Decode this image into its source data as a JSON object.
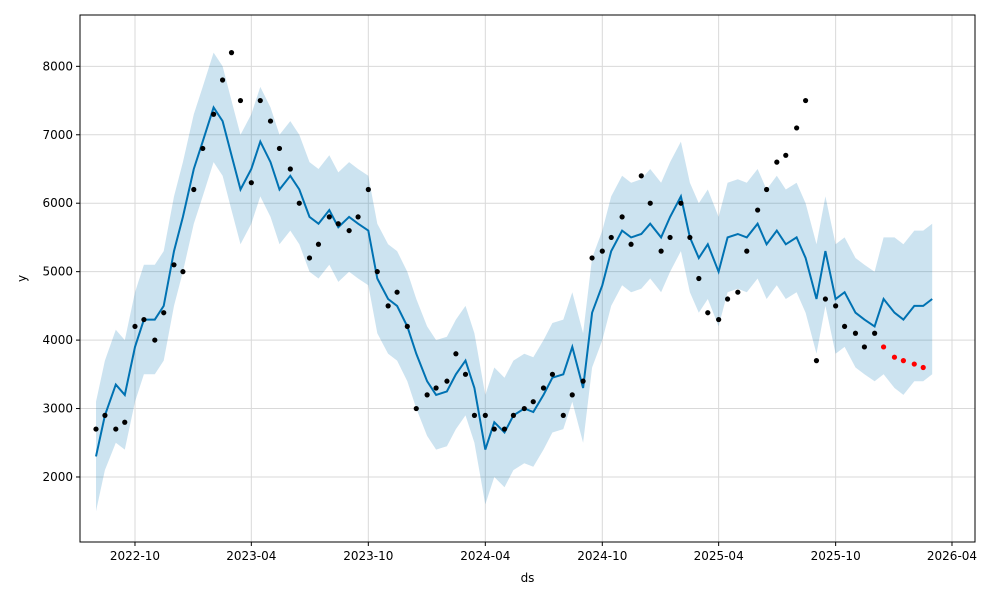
{
  "chart_data": {
    "type": "line",
    "title": "",
    "xlabel": "ds",
    "ylabel": "y",
    "xlim": [
      "2022-07-07",
      "2026-05-07"
    ],
    "ylim": [
      1050,
      8750
    ],
    "grid": true,
    "x_ticks": [
      "2022-10",
      "2023-04",
      "2023-10",
      "2024-04",
      "2024-10",
      "2025-04",
      "2025-10",
      "2026-04"
    ],
    "x_tick_dates": [
      "2022-10-01",
      "2023-04-01",
      "2023-10-01",
      "2024-04-01",
      "2024-10-01",
      "2025-04-01",
      "2025-10-01",
      "2026-04-01"
    ],
    "y_ticks": [
      2000,
      3000,
      4000,
      5000,
      6000,
      7000,
      8000
    ],
    "y_tick_labels": [
      "2000",
      "3000",
      "4000",
      "5000",
      "6000",
      "7000",
      "8000"
    ],
    "colors": {
      "forecast": "#0072B2",
      "interval": "#0072B2",
      "history_points": "#000000",
      "test_points": "#ff0000",
      "grid": "#d9d9d9"
    },
    "forecast": {
      "x": [
        "2022-08-01",
        "2022-08-15",
        "2022-09-01",
        "2022-09-15",
        "2022-10-01",
        "2022-10-15",
        "2022-11-01",
        "2022-11-15",
        "2022-12-01",
        "2022-12-15",
        "2023-01-01",
        "2023-01-15",
        "2023-02-01",
        "2023-02-15",
        "2023-03-01",
        "2023-03-15",
        "2023-04-01",
        "2023-04-15",
        "2023-05-01",
        "2023-05-15",
        "2023-06-01",
        "2023-06-15",
        "2023-07-01",
        "2023-07-15",
        "2023-08-01",
        "2023-08-15",
        "2023-09-01",
        "2023-09-15",
        "2023-10-01",
        "2023-10-15",
        "2023-11-01",
        "2023-11-15",
        "2023-12-01",
        "2023-12-15",
        "2024-01-01",
        "2024-01-15",
        "2024-02-01",
        "2024-02-15",
        "2024-03-01",
        "2024-03-15",
        "2024-04-01",
        "2024-04-15",
        "2024-05-01",
        "2024-05-15",
        "2024-06-01",
        "2024-06-15",
        "2024-07-01",
        "2024-07-15",
        "2024-08-01",
        "2024-08-15",
        "2024-09-01",
        "2024-09-15",
        "2024-10-01",
        "2024-10-15",
        "2024-11-01",
        "2024-11-15",
        "2024-12-01",
        "2024-12-15",
        "2025-01-01",
        "2025-01-15",
        "2025-02-01",
        "2025-02-15",
        "2025-03-01",
        "2025-03-15",
        "2025-04-01",
        "2025-04-15",
        "2025-05-01",
        "2025-05-15",
        "2025-06-01",
        "2025-06-15",
        "2025-07-01",
        "2025-07-15",
        "2025-08-01",
        "2025-08-15",
        "2025-09-01",
        "2025-09-15",
        "2025-10-01",
        "2025-10-15",
        "2025-11-01",
        "2025-11-15",
        "2025-12-01",
        "2025-12-15",
        "2026-01-01",
        "2026-01-15",
        "2026-02-01",
        "2026-02-15",
        "2026-03-01"
      ],
      "yhat": [
        2300,
        2900,
        3350,
        3200,
        3900,
        4300,
        4300,
        4500,
        5300,
        5800,
        6500,
        6900,
        7400,
        7200,
        6700,
        6200,
        6500,
        6900,
        6600,
        6200,
        6400,
        6200,
        5800,
        5700,
        5900,
        5650,
        5800,
        5700,
        5600,
        4900,
        4600,
        4500,
        4200,
        3800,
        3400,
        3200,
        3250,
        3500,
        3700,
        3300,
        2400,
        2800,
        2650,
        2900,
        3000,
        2950,
        3200,
        3450,
        3500,
        3900,
        3300,
        4400,
        4800,
        5300,
        5600,
        5500,
        5550,
        5700,
        5500,
        5800,
        6100,
        5500,
        5200,
        5400,
        5000,
        5500,
        5550,
        5500,
        5700,
        5400,
        5600,
        5400,
        5500,
        5200,
        4600,
        5300,
        4600,
        4700,
        4400,
        4300,
        4200,
        4600,
        4400,
        4300,
        4500,
        4500,
        4600
      ],
      "yhat_lower": [
        1500,
        2100,
        2500,
        2400,
        3100,
        3500,
        3500,
        3700,
        4500,
        5000,
        5700,
        6100,
        6600,
        6400,
        5900,
        5400,
        5700,
        6100,
        5800,
        5400,
        5600,
        5400,
        5000,
        4900,
        5100,
        4850,
        5000,
        4900,
        4800,
        4100,
        3800,
        3700,
        3400,
        3000,
        2600,
        2400,
        2450,
        2700,
        2900,
        2500,
        1600,
        2000,
        1850,
        2100,
        2200,
        2150,
        2400,
        2650,
        2700,
        3100,
        2500,
        3600,
        4000,
        4500,
        4800,
        4700,
        4750,
        4900,
        4700,
        5000,
        5300,
        4700,
        4400,
        4600,
        4200,
        4700,
        4750,
        4700,
        4900,
        4600,
        4800,
        4600,
        4700,
        4400,
        3800,
        4500,
        3800,
        3900,
        3600,
        3500,
        3400,
        3500,
        3300,
        3200,
        3400,
        3400,
        3500
      ],
      "yhat_upper": [
        3100,
        3700,
        4150,
        4000,
        4700,
        5100,
        5100,
        5300,
        6100,
        6600,
        7300,
        7700,
        8200,
        8000,
        7500,
        7000,
        7300,
        7700,
        7400,
        7000,
        7200,
        7000,
        6600,
        6500,
        6700,
        6450,
        6600,
        6500,
        6400,
        5700,
        5400,
        5300,
        5000,
        4600,
        4200,
        4000,
        4050,
        4300,
        4500,
        4100,
        3200,
        3600,
        3450,
        3700,
        3800,
        3750,
        4000,
        4250,
        4300,
        4700,
        4100,
        5200,
        5600,
        6100,
        6400,
        6300,
        6350,
        6500,
        6300,
        6600,
        6900,
        6300,
        6000,
        6200,
        5800,
        6300,
        6350,
        6300,
        6500,
        6200,
        6400,
        6200,
        6300,
        6000,
        5400,
        6100,
        5400,
        5500,
        5200,
        5100,
        5000,
        5500,
        5500,
        5400,
        5600,
        5600,
        5700
      ]
    },
    "history_points": {
      "x": [
        "2022-08-01",
        "2022-08-15",
        "2022-09-01",
        "2022-09-15",
        "2022-10-01",
        "2022-10-15",
        "2022-11-01",
        "2022-11-15",
        "2022-12-01",
        "2022-12-15",
        "2023-01-01",
        "2023-01-15",
        "2023-02-01",
        "2023-02-15",
        "2023-03-01",
        "2023-03-15",
        "2023-04-01",
        "2023-04-15",
        "2023-05-01",
        "2023-05-15",
        "2023-06-01",
        "2023-06-15",
        "2023-07-01",
        "2023-07-15",
        "2023-08-01",
        "2023-08-15",
        "2023-09-01",
        "2023-09-15",
        "2023-10-01",
        "2023-10-15",
        "2023-11-01",
        "2023-11-15",
        "2023-12-01",
        "2023-12-15",
        "2024-01-01",
        "2024-01-15",
        "2024-02-01",
        "2024-02-15",
        "2024-03-01",
        "2024-03-15",
        "2024-04-01",
        "2024-04-15",
        "2024-05-01",
        "2024-05-15",
        "2024-06-01",
        "2024-06-15",
        "2024-07-01",
        "2024-07-15",
        "2024-08-01",
        "2024-08-15",
        "2024-09-01",
        "2024-09-15",
        "2024-10-01",
        "2024-10-15",
        "2024-11-01",
        "2024-11-15",
        "2024-12-01",
        "2024-12-15",
        "2025-01-01",
        "2025-01-15",
        "2025-02-01",
        "2025-02-15",
        "2025-03-01",
        "2025-03-15",
        "2025-04-01",
        "2025-04-15",
        "2025-05-01",
        "2025-05-15",
        "2025-06-01",
        "2025-06-15",
        "2025-07-01",
        "2025-07-15",
        "2025-08-01",
        "2025-08-15",
        "2025-09-01",
        "2025-09-15",
        "2025-10-01",
        "2025-10-15",
        "2025-11-01",
        "2025-11-15",
        "2025-12-01"
      ],
      "y": [
        2700,
        2900,
        2700,
        2800,
        4200,
        4300,
        4000,
        4400,
        5100,
        5000,
        6200,
        6800,
        7300,
        7800,
        8200,
        7500,
        6300,
        7500,
        7200,
        6800,
        6500,
        6000,
        5200,
        5400,
        5800,
        5700,
        5600,
        5800,
        6200,
        5000,
        4500,
        4700,
        4200,
        3000,
        3200,
        3300,
        3400,
        3800,
        3500,
        2900,
        2900,
        2700,
        2700,
        2900,
        3000,
        3100,
        3300,
        3500,
        2900,
        3200,
        3400,
        5200,
        5300,
        5500,
        5800,
        5400,
        6400,
        6000,
        5300,
        5500,
        6000,
        5500,
        4900,
        4400,
        4300,
        4600,
        4700,
        5300,
        5900,
        6200,
        6600,
        6700,
        7100,
        7500,
        3700,
        4600,
        4500,
        4200,
        4100,
        3900,
        4100
      ],
      "marker": "dot"
    },
    "test_points": {
      "x": [
        "2025-12-15",
        "2026-01-01",
        "2026-01-15",
        "2026-02-01",
        "2026-02-15"
      ],
      "y": [
        3900,
        3750,
        3700,
        3650,
        3600
      ],
      "marker": "dot"
    }
  }
}
